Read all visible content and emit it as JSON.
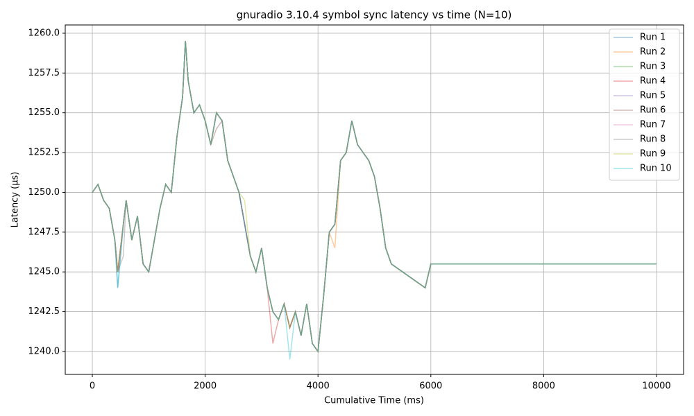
{
  "chart_data": {
    "type": "line",
    "title": "gnuradio 3.10.4 symbol sync latency vs time (N=10)",
    "x_label": "Cumulative Time (ms)",
    "y_label": "Latency (µs)",
    "x": [
      0,
      100,
      200,
      300,
      400,
      450,
      550,
      600,
      700,
      800,
      900,
      1000,
      1100,
      1200,
      1300,
      1400,
      1500,
      1600,
      1650,
      1700,
      1800,
      1900,
      2000,
      2100,
      2200,
      2300,
      2400,
      2500,
      2600,
      2700,
      2800,
      2900,
      3000,
      3100,
      3200,
      3300,
      3400,
      3500,
      3600,
      3700,
      3800,
      3900,
      4000,
      4100,
      4200,
      4300,
      4400,
      4500,
      4600,
      4700,
      4800,
      4900,
      5000,
      5100,
      5200,
      5300,
      5900,
      6000,
      7000,
      8000,
      9000,
      10000
    ],
    "series": [
      {
        "name": "Run 1",
        "color": "#1f77b4",
        "values": [
          1250,
          1250.5,
          1249.5,
          1249,
          1247,
          1244,
          1248,
          1249.5,
          1247,
          1248.5,
          1245.5,
          1245,
          1247,
          1249,
          1250.5,
          1250,
          1253.5,
          1256,
          1259.5,
          1257,
          1255,
          1255.5,
          1254.5,
          1253,
          1255,
          1254.5,
          1252,
          1251,
          1250,
          1248,
          1246,
          1245,
          1246.5,
          1244,
          1242.5,
          1242,
          1243,
          1241.5,
          1242.5,
          1241,
          1243,
          1240.5,
          1240,
          1243.5,
          1247.5,
          1248,
          1252,
          1252.5,
          1254.5,
          1253,
          1252.5,
          1252,
          1251,
          1249,
          1246.5,
          1245.5,
          1244,
          1245.5,
          1245.5,
          1245.5,
          1245.5,
          1245.5
        ]
      },
      {
        "name": "Run 2",
        "color": "#ff7f0e",
        "values": [
          1250,
          1250.5,
          1249.5,
          1249,
          1247,
          1245,
          1248,
          1249.5,
          1247,
          1248.5,
          1245.5,
          1245,
          1247,
          1249,
          1250.5,
          1250,
          1253.5,
          1256,
          1259.5,
          1257,
          1255,
          1255.5,
          1254.5,
          1253,
          1255,
          1254.5,
          1252,
          1251,
          1250,
          1248,
          1246,
          1245,
          1246.5,
          1244,
          1242.5,
          1242,
          1243,
          1241.5,
          1242.5,
          1241,
          1243,
          1240.5,
          1240,
          1243.5,
          1247.5,
          1246.5,
          1252,
          1252.5,
          1254.5,
          1253,
          1252.5,
          1252,
          1251,
          1249,
          1246.5,
          1245.5,
          1244,
          1245.5,
          1245.5,
          1245.5,
          1245.5,
          1245.5
        ]
      },
      {
        "name": "Run 3",
        "color": "#2ca02c",
        "values": [
          1250,
          1250.5,
          1249.5,
          1249,
          1247,
          1245,
          1248,
          1249.5,
          1247,
          1248.5,
          1245.5,
          1245,
          1247,
          1249,
          1250.5,
          1250,
          1253.5,
          1256,
          1259.5,
          1257,
          1255,
          1255.5,
          1254.5,
          1253,
          1255,
          1254.5,
          1252,
          1251,
          1250,
          1248,
          1246,
          1245,
          1246.5,
          1244,
          1242.5,
          1242,
          1243,
          1241.5,
          1242.5,
          1241,
          1243,
          1240.5,
          1240,
          1243.5,
          1247.5,
          1248,
          1252,
          1252.5,
          1254.5,
          1253,
          1252.5,
          1252,
          1251,
          1249,
          1246.5,
          1245.5,
          1244,
          1245.5,
          1245.5,
          1245.5,
          1245.5,
          1245.5
        ]
      },
      {
        "name": "Run 4",
        "color": "#d62728",
        "values": [
          1250,
          1250.5,
          1249.5,
          1249,
          1247,
          1245,
          1248,
          1249.5,
          1247,
          1248.5,
          1245.5,
          1245,
          1247,
          1249,
          1250.5,
          1250,
          1253.5,
          1256,
          1259.5,
          1257,
          1255,
          1255.5,
          1254.5,
          1253,
          1255,
          1254.5,
          1252,
          1251,
          1250,
          1248,
          1246,
          1245,
          1246.5,
          1244,
          1240.5,
          1242,
          1243,
          1241.5,
          1242.5,
          1241,
          1243,
          1240.5,
          1240,
          1243.5,
          1247.5,
          1248,
          1252,
          1252.5,
          1254.5,
          1253,
          1252.5,
          1252,
          1251,
          1249,
          1246.5,
          1245.5,
          1244,
          1245.5,
          1245.5,
          1245.5,
          1245.5,
          1245.5
        ]
      },
      {
        "name": "Run 5",
        "color": "#9467bd",
        "values": [
          1250,
          1250.5,
          1249.5,
          1249,
          1247,
          1245,
          1248,
          1249.5,
          1247,
          1248.5,
          1245.5,
          1245,
          1247,
          1249,
          1250.5,
          1250,
          1253.5,
          1256,
          1259.5,
          1257,
          1255,
          1255.5,
          1254.5,
          1253,
          1255,
          1254.5,
          1252,
          1251,
          1250,
          1248,
          1246,
          1245,
          1246.5,
          1244,
          1242.5,
          1242,
          1243,
          1241.5,
          1242.5,
          1241,
          1243,
          1240.5,
          1240,
          1243.5,
          1247.5,
          1248,
          1252,
          1252.5,
          1254.5,
          1253,
          1252.5,
          1252,
          1251,
          1249,
          1246.5,
          1245.5,
          1244,
          1245.5,
          1245.5,
          1245.5,
          1245.5,
          1245.5
        ]
      },
      {
        "name": "Run 6",
        "color": "#8c564b",
        "values": [
          1250,
          1250.5,
          1249.5,
          1249,
          1247,
          1245,
          1248,
          1249.5,
          1247,
          1248.5,
          1245.5,
          1245,
          1247,
          1249,
          1250.5,
          1250,
          1253.5,
          1256,
          1259.5,
          1257,
          1255,
          1255.5,
          1254.5,
          1253,
          1254,
          1254.5,
          1252,
          1251,
          1250,
          1248,
          1246,
          1245,
          1246.5,
          1244,
          1242.5,
          1242,
          1243,
          1241.5,
          1242.5,
          1241,
          1243,
          1240.5,
          1240,
          1243.5,
          1247.5,
          1248,
          1252,
          1252.5,
          1254.5,
          1253,
          1252.5,
          1252,
          1251,
          1249,
          1246.5,
          1245.5,
          1244,
          1245.5,
          1245.5,
          1245.5,
          1245.5,
          1245.5
        ]
      },
      {
        "name": "Run 7",
        "color": "#e377c2",
        "values": [
          1250,
          1250.5,
          1249.5,
          1249,
          1247,
          1245,
          1248,
          1249.5,
          1247,
          1248.5,
          1245.5,
          1245,
          1247,
          1249,
          1250.5,
          1250,
          1253.5,
          1256,
          1259.5,
          1257,
          1255,
          1255.5,
          1254.5,
          1253,
          1255,
          1254.5,
          1252,
          1251,
          1250,
          1248,
          1246,
          1245,
          1246.5,
          1244,
          1242.5,
          1242,
          1243,
          1241.5,
          1242.5,
          1241,
          1243,
          1240.5,
          1240,
          1243.5,
          1247.5,
          1248,
          1252,
          1252.5,
          1254.5,
          1253,
          1252.5,
          1252,
          1251,
          1249,
          1246.5,
          1245.5,
          1244,
          1245.5,
          1245.5,
          1245.5,
          1245.5,
          1245.5
        ]
      },
      {
        "name": "Run 8",
        "color": "#7f7f7f",
        "values": [
          1250,
          1250.5,
          1249.5,
          1249,
          1247,
          1245,
          1246,
          1249.5,
          1247,
          1248.5,
          1245.5,
          1245,
          1247,
          1249,
          1250.5,
          1250,
          1253.5,
          1256,
          1259.5,
          1257,
          1255,
          1255.5,
          1254.5,
          1253,
          1255,
          1254.5,
          1252,
          1251,
          1250,
          1248,
          1246,
          1245,
          1246.5,
          1244,
          1242.5,
          1242,
          1243,
          1241.5,
          1242.5,
          1241,
          1243,
          1240.5,
          1240,
          1243.5,
          1247.5,
          1248,
          1252,
          1252.5,
          1254.5,
          1253,
          1252.5,
          1252,
          1251,
          1249,
          1246.5,
          1245.5,
          1244,
          1245.5,
          1245.5,
          1245.5,
          1245.5,
          1245.5
        ]
      },
      {
        "name": "Run 9",
        "color": "#bcbd22",
        "values": [
          1250,
          1250.5,
          1249.5,
          1249,
          1247,
          1245,
          1248,
          1249.5,
          1247,
          1248.5,
          1245.5,
          1245,
          1247,
          1249,
          1250.5,
          1250,
          1253.5,
          1256,
          1259.5,
          1257,
          1255,
          1255.5,
          1254.5,
          1253,
          1255,
          1254.5,
          1252,
          1251,
          1250,
          1249.5,
          1246,
          1245,
          1246.5,
          1244,
          1242.5,
          1242,
          1243,
          1241.5,
          1242.5,
          1241,
          1243,
          1240.5,
          1240,
          1243.5,
          1247.5,
          1248,
          1252,
          1252.5,
          1254.5,
          1253,
          1252.5,
          1252,
          1251,
          1249,
          1246.5,
          1245.5,
          1244,
          1245.5,
          1245.5,
          1245.5,
          1245.5,
          1245.5
        ]
      },
      {
        "name": "Run 10",
        "color": "#17becf",
        "values": [
          1250,
          1250.5,
          1249.5,
          1249,
          1247,
          1244,
          1248,
          1249.5,
          1247,
          1248.5,
          1245.5,
          1245,
          1247,
          1249,
          1250.5,
          1250,
          1253.5,
          1256,
          1259.5,
          1257,
          1255,
          1255.5,
          1254.5,
          1253,
          1255,
          1254.5,
          1252,
          1251,
          1250,
          1248,
          1246,
          1245,
          1246.5,
          1244,
          1242.5,
          1242,
          1243,
          1239.5,
          1242.5,
          1241,
          1243,
          1240.5,
          1240,
          1243.5,
          1247.5,
          1248,
          1252,
          1252.5,
          1254.5,
          1253,
          1252.5,
          1252,
          1251,
          1249,
          1246.5,
          1245.5,
          1244,
          1245.5,
          1245.5,
          1245.5,
          1245.5,
          1245.5
        ]
      }
    ],
    "xlim": [
      -480,
      10480
    ],
    "ylim": [
      1238.56,
      1260.52
    ],
    "xticks": [
      0,
      2000,
      4000,
      6000,
      8000,
      10000
    ],
    "yticks": [
      {
        "value": 1240,
        "label": "1240.0"
      },
      {
        "value": 1242.5,
        "label": "1242.5"
      },
      {
        "value": 1245,
        "label": "1245.0"
      },
      {
        "value": 1247.5,
        "label": "1247.5"
      },
      {
        "value": 1250,
        "label": "1250.0"
      },
      {
        "value": 1252.5,
        "label": "1252.5"
      },
      {
        "value": 1255,
        "label": "1255.0"
      },
      {
        "value": 1257.5,
        "label": "1257.5"
      },
      {
        "value": 1260,
        "label": "1260.0"
      }
    ],
    "grid": true,
    "legend": "upper-right",
    "line_opacity": 0.4
  }
}
